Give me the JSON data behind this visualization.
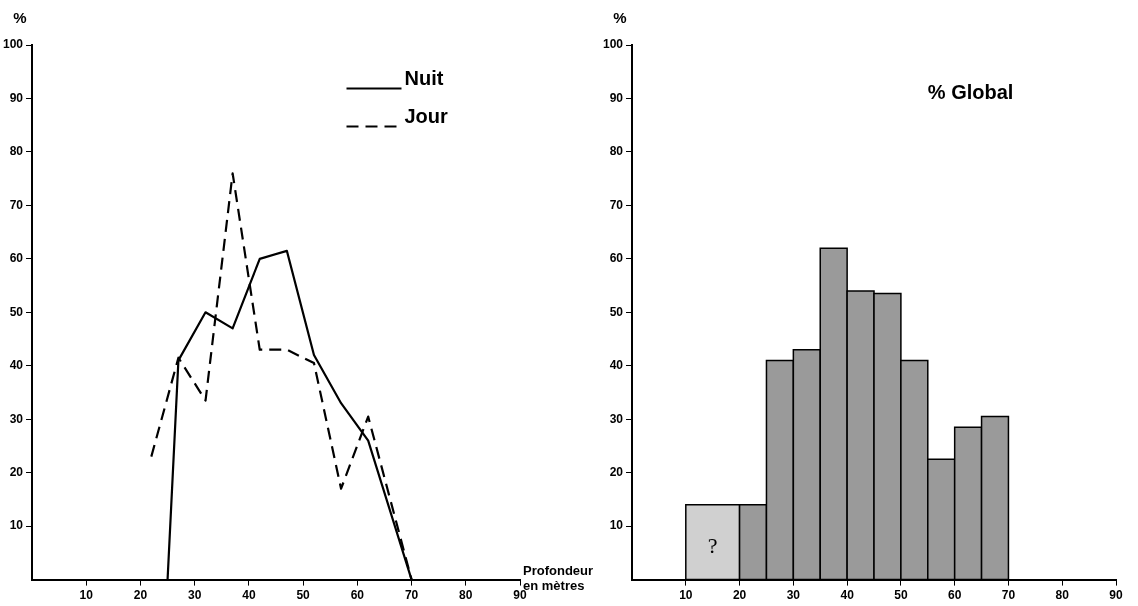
{
  "chart_data": [
    {
      "type": "line",
      "ylabel": "%",
      "xlabel": "Profondeur en mètres",
      "legend": "top right",
      "marker": "none",
      "grid": false,
      "xlim": [
        0,
        90
      ],
      "xticks": [
        10,
        20,
        30,
        40,
        50,
        60,
        70,
        80,
        90
      ],
      "ylim": [
        0,
        100
      ],
      "yticks": [
        10,
        20,
        30,
        40,
        50,
        60,
        70,
        80,
        90,
        100
      ],
      "series": [
        {
          "name": "Nuit",
          "color": "#000000",
          "line_style": "solid",
          "x": [
            25,
            27,
            32,
            37,
            42,
            47,
            52,
            57,
            62,
            70
          ],
          "values": [
            0,
            41,
            50,
            47,
            60,
            61.5,
            42,
            33,
            26,
            0
          ]
        },
        {
          "name": "Jour",
          "color": "#000000",
          "line_style": "dashed",
          "x": [
            22,
            27,
            32,
            37,
            42,
            47,
            52,
            57,
            62,
            70
          ],
          "values": [
            23,
            41.5,
            33.5,
            76,
            43,
            43,
            40.5,
            17,
            30.5,
            0
          ]
        }
      ]
    },
    {
      "type": "histogram",
      "title": "% Global",
      "ylabel": "%",
      "grid": false,
      "xlim": [
        0,
        90
      ],
      "xticks": [
        10,
        20,
        30,
        40,
        50,
        60,
        70,
        80,
        90
      ],
      "ylim": [
        0,
        100
      ],
      "yticks": [
        10,
        20,
        30,
        40,
        50,
        60,
        70,
        80,
        90,
        100
      ],
      "bins": [
        10,
        20,
        25,
        30,
        35,
        40,
        45,
        50,
        55,
        60,
        65,
        70
      ],
      "values": [
        14,
        14,
        41,
        43,
        62,
        54,
        53.5,
        41,
        22.5,
        28.5,
        30.5
      ],
      "colors": [
        "#d0d0d0",
        "#9a9a9a",
        "#9a9a9a",
        "#9a9a9a",
        "#9a9a9a",
        "#9a9a9a",
        "#9a9a9a",
        "#9a9a9a",
        "#9a9a9a",
        "#9a9a9a",
        "#9a9a9a"
      ],
      "annotations": [
        "?"
      ]
    }
  ]
}
